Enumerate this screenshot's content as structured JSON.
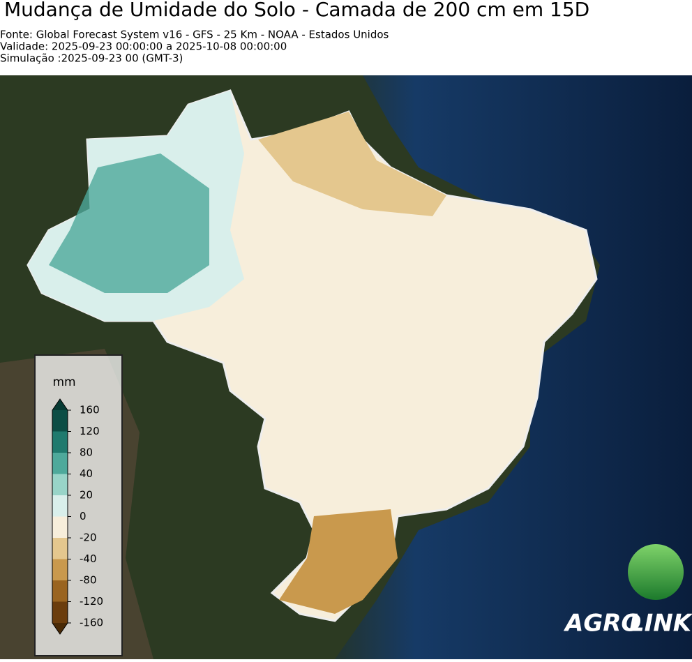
{
  "header": {
    "title": "Mudança de Umidade do Solo - Camada de 200 cm em 15D",
    "lines": [
      "Fonte: Global Forecast System v16 - GFS - 25 Km - NOAA - Estados Unidos",
      "Validade: 2025-09-23 00:00:00 a 2025-10-08 00:00:00",
      "Simulação :2025-09-23 00 (GMT-3)"
    ]
  },
  "legend": {
    "unit": "mm",
    "ticks": [
      160,
      120,
      80,
      40,
      20,
      0,
      -20,
      -40,
      -80,
      -120,
      -160
    ],
    "colors": [
      "#0b4d45",
      "#1f7a6e",
      "#4ea99b",
      "#98d4c8",
      "#d9efeb",
      "#f7eedb",
      "#e4c78e",
      "#c9994d",
      "#9a6420",
      "#6b3d0d"
    ],
    "extend_colors": [
      "#063a33",
      "#4a2a06"
    ]
  },
  "logo": {
    "parts": [
      "AGRO",
      "LINK"
    ]
  }
}
